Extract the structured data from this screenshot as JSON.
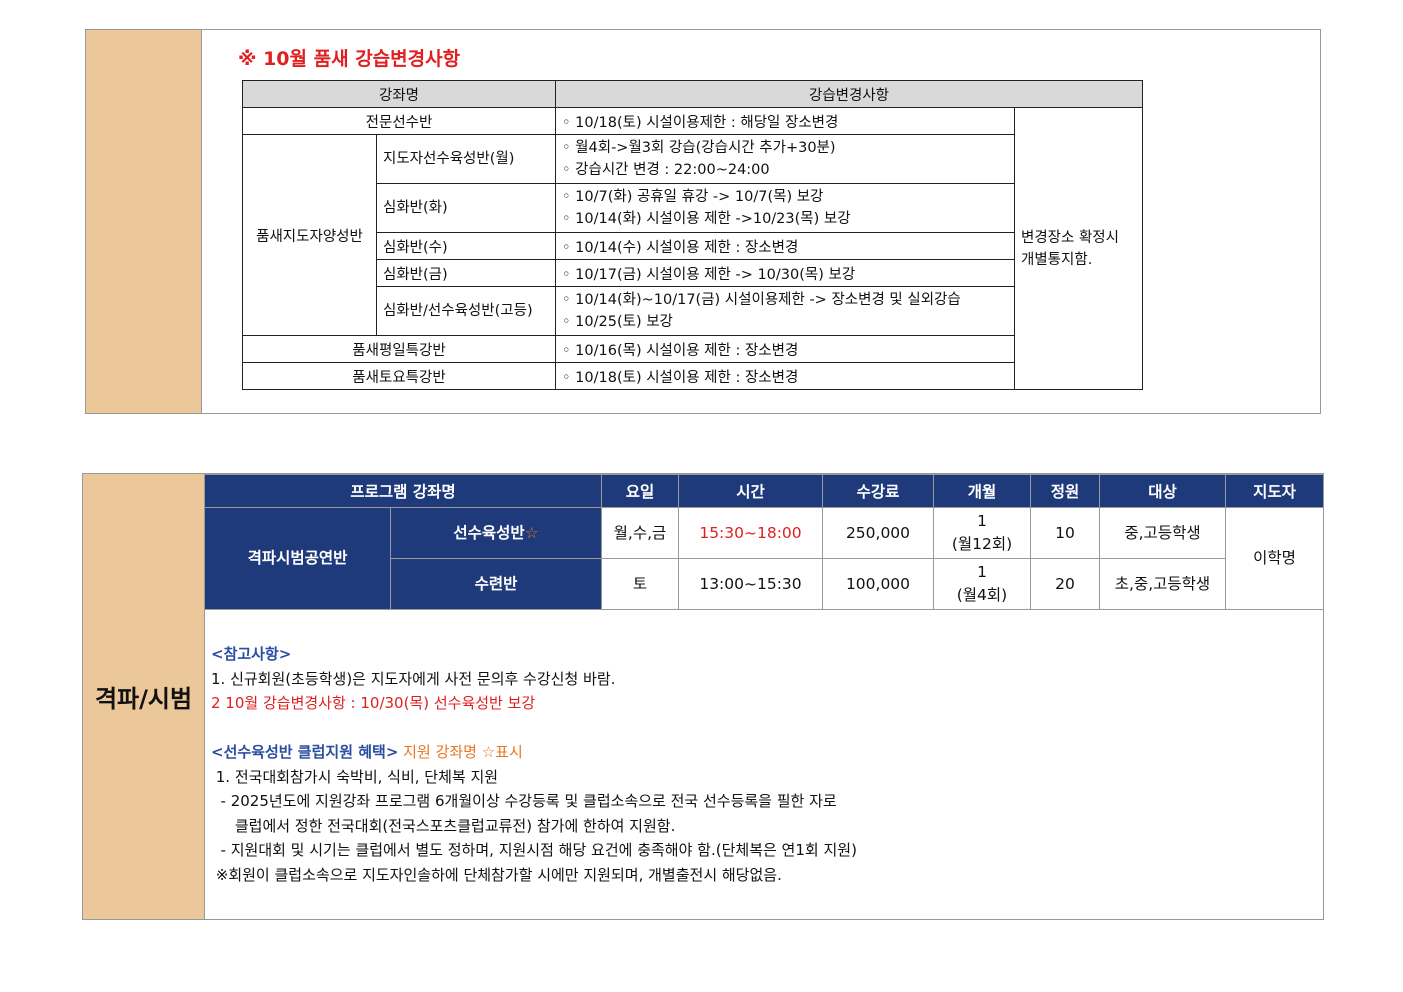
{
  "top": {
    "title": "※ 10월 품새 강습변경사항",
    "headers": [
      "강좌명",
      "강습변경사항"
    ],
    "rows": [
      {
        "name": "전문선수반",
        "changes": [
          "◦ 10/18(토) 시설이용제한 : 해당일 장소변경"
        ]
      },
      {
        "group": "품새지도자양성반",
        "name": "지도자선수육성반(월)",
        "changes": [
          "◦ 월4회->월3회 강습(강습시간 추가+30분)",
          "◦ 강습시간 변경 : 22:00~24:00"
        ]
      },
      {
        "name": "심화반(화)",
        "changes": [
          "◦ 10/7(화) 공휴일 휴강 -> 10/7(목) 보강",
          "◦ 10/14(화) 시설이용 제한 ->10/23(목)  보강"
        ]
      },
      {
        "name": "심화반(수)",
        "changes": [
          "◦ 10/14(수) 시설이용 제한 : 장소변경"
        ]
      },
      {
        "name": "심화반(금)",
        "changes": [
          "◦ 10/17(금) 시설이용 제한 -> 10/30(목) 보강"
        ]
      },
      {
        "name": "심화반/선수육성반(고등)",
        "changes": [
          "◦ 10/14(화)~10/17(금) 시설이용제한 -> 장소변경 및 실외강습",
          "◦ 10/25(토) 보강"
        ]
      },
      {
        "name": "품새평일특강반",
        "changes": [
          "◦ 10/16(목) 시설이용 제한 : 장소변경"
        ]
      },
      {
        "name": "품새토요특강반",
        "changes": [
          "◦ 10/18(토) 시설이용 제한 : 장소변경"
        ]
      }
    ],
    "note": [
      "변경장소 확정시",
      "개별통지함."
    ]
  },
  "bottom": {
    "side_label": "격파/시범",
    "headers": [
      "프로그램 강좌명",
      "요일",
      "시간",
      "수강료",
      "개월",
      "정원",
      "대상",
      "지도자"
    ],
    "group": "격파시범공연반",
    "instructor": "이학명",
    "rows": [
      {
        "name": "선수육성반",
        "star": "☆",
        "days": "월,수,금",
        "time": "15:30~18:00",
        "fee": "250,000",
        "months": "1",
        "months_note": "(월12회)",
        "capacity": "10",
        "target": "중,고등학생"
      },
      {
        "name": "수련반",
        "star": "",
        "days": "토",
        "time": "13:00~15:30",
        "fee": "100,000",
        "months": "1",
        "months_note": "(월4회)",
        "capacity": "20",
        "target": "초,중,고등학생"
      }
    ],
    "notes": {
      "ref_title": "<참고사항>",
      "ref1": "1. 신규회원(초등학생)은 지도자에게 사전 문의후 수강신청 바람.",
      "ref2": "2 10월 강습변경사항 : 10/30(목) 선수육성반 보강",
      "club_title": "<선수육성반 클럽지원 혜택>",
      "club_title_extra": " 지원 강좌명 ☆표시",
      "club1": " 1. 전국대회참가시 숙박비, 식비, 단체복 지원",
      "club2": "  - 2025년도에 지원강좌 프로그램 6개월이상 수강등록 및 클럽소속으로 전국 선수등록을 필한 자로",
      "club3": "     클럽에서 정한 전국대회(전국스포츠클럽교류전) 참가에 한하여 지원함.",
      "club4": "  - 지원대회 및 시기는 클럽에서 별도 정하며, 지원시점 해당 요건에 충족해야 함.(단체복은 연1회 지원)",
      "club5": " ※회원이 클럽소속으로 지도자인솔하에 단체참가할 시에만 지원되며, 개별출전시 해당없음."
    }
  },
  "colors": {
    "tan": "#ebc79a",
    "navy": "#1f3a7a",
    "red": "#e02020",
    "orange": "#e87722",
    "blue": "#2b4ea2"
  }
}
